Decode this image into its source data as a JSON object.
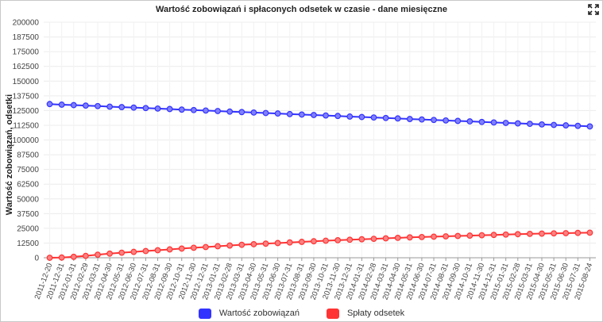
{
  "chart_data": {
    "type": "line",
    "title": "Wartość zobowiązań i spłaconych odsetek w czasie - dane miesięczne",
    "xlabel": "",
    "ylabel": "Wartość zobowiązań, odsetki",
    "ylim": [
      0,
      200000
    ],
    "y_ticks": [
      "200000",
      "187500",
      "175000",
      "162500",
      "150000",
      "137500",
      "125000",
      "112500",
      "100000",
      "87500",
      "75000",
      "62500",
      "50000",
      "37500",
      "25000",
      "12500",
      "0"
    ],
    "grid": true,
    "legend_position": "bottom-center",
    "categories": [
      "2011-12-20",
      "2011-12-31",
      "2012-01-31",
      "2012-02-29",
      "2012-03-31",
      "2012-04-30",
      "2012-05-31",
      "2012-06-30",
      "2012-07-31",
      "2012-08-31",
      "2012-09-30",
      "2012-10-31",
      "2012-11-30",
      "2012-12-31",
      "2013-01-31",
      "2013-02-28",
      "2013-03-31",
      "2013-04-30",
      "2013-05-31",
      "2013-06-30",
      "2013-07-31",
      "2013-08-31",
      "2013-09-30",
      "2013-10-31",
      "2013-11-30",
      "2013-12-31",
      "2014-01-31",
      "2014-02-28",
      "2014-03-31",
      "2014-04-30",
      "2014-05-31",
      "2014-06-30",
      "2014-07-31",
      "2014-08-31",
      "2014-09-30",
      "2014-10-31",
      "2014-11-30",
      "2014-12-31",
      "2015-01-31",
      "2015-02-28",
      "2015-03-31",
      "2015-04-30",
      "2015-05-31",
      "2015-06-30",
      "2015-07-31",
      "2015-08-24"
    ],
    "series": [
      {
        "name": "Wartość zobowiązań",
        "color": "#3333ff",
        "values": [
          130500,
          130000,
          129600,
          129200,
          128800,
          128300,
          127900,
          127500,
          127100,
          126700,
          126300,
          125800,
          125400,
          125000,
          124600,
          124100,
          123700,
          123300,
          122900,
          122500,
          122000,
          121600,
          121200,
          120800,
          120400,
          119900,
          119500,
          119100,
          118700,
          118300,
          117800,
          117400,
          117000,
          116600,
          116200,
          115800,
          115300,
          114900,
          114500,
          114100,
          113700,
          113200,
          112800,
          112400,
          112000,
          111500
        ]
      },
      {
        "name": "Spłaty odsetek",
        "color": "#ff3333",
        "values": [
          0,
          200,
          800,
          1600,
          2600,
          3500,
          4300,
          5000,
          5700,
          6400,
          7100,
          7800,
          8500,
          9100,
          9800,
          10400,
          11000,
          11500,
          12000,
          12500,
          13000,
          13500,
          14000,
          14500,
          14900,
          15300,
          15700,
          16100,
          16500,
          16900,
          17300,
          17600,
          17900,
          18200,
          18500,
          18800,
          19100,
          19400,
          19700,
          20000,
          20300,
          20500,
          20700,
          20900,
          21100,
          21300
        ]
      }
    ]
  },
  "controls": {
    "expand_icon": "fullscreen-icon"
  }
}
